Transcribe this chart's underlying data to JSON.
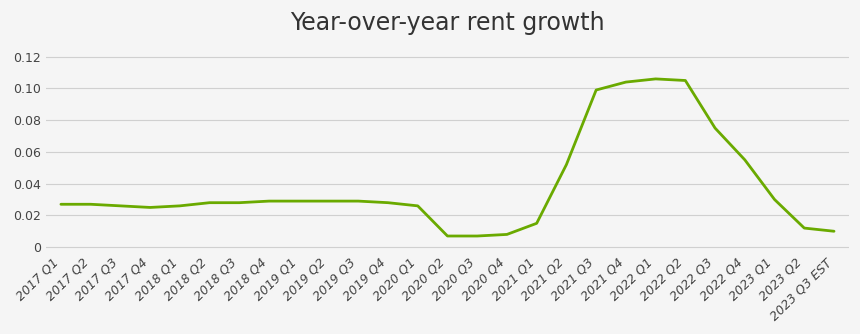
{
  "title": "Year-over-year rent growth",
  "title_fontsize": 17,
  "line_color": "#6aaa00",
  "line_width": 2.0,
  "background_color": "#f5f5f5",
  "grid_color": "#d0d0d0",
  "labels": [
    "2017 Q1",
    "2017 Q2",
    "2017 Q3",
    "2017 Q4",
    "2018 Q1",
    "2018 Q2",
    "2018 Q3",
    "2018 Q4",
    "2019 Q1",
    "2019 Q2",
    "2019 Q3",
    "2019 Q4",
    "2020 Q1",
    "2020 Q2",
    "2020 Q3",
    "2020 Q4",
    "2021 Q1",
    "2021 Q2",
    "2021 Q3",
    "2021 Q4",
    "2022 Q1",
    "2022 Q2",
    "2022 Q3",
    "2022 Q4",
    "2023 Q1",
    "2023 Q2",
    "2023 Q3 EST"
  ],
  "values": [
    0.027,
    0.027,
    0.026,
    0.025,
    0.026,
    0.028,
    0.028,
    0.029,
    0.029,
    0.029,
    0.029,
    0.028,
    0.026,
    0.007,
    0.007,
    0.008,
    0.015,
    0.052,
    0.099,
    0.104,
    0.106,
    0.105,
    0.075,
    0.055,
    0.03,
    0.012,
    0.01
  ],
  "ylim": [
    -0.004,
    0.128
  ],
  "yticks": [
    0,
    0.02,
    0.04,
    0.06,
    0.08,
    0.1,
    0.12
  ],
  "tick_fontsize": 9,
  "tick_color": "#444444",
  "title_color": "#333333"
}
